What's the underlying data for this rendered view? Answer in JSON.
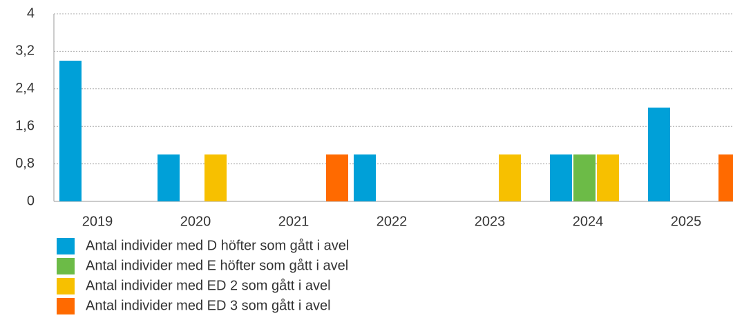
{
  "chart_data": {
    "type": "bar",
    "categories": [
      "2019",
      "2020",
      "2021",
      "2022",
      "2023",
      "2024",
      "2025"
    ],
    "series": [
      {
        "name": "Antal individer med D höfter som gått i avel",
        "color": "#00a0d8",
        "values": [
          3,
          1,
          0,
          1,
          0,
          1,
          2
        ]
      },
      {
        "name": "Antal individer med E höfter som gått i avel",
        "color": "#6cbb47",
        "values": [
          0,
          0,
          0,
          0,
          0,
          1,
          0
        ]
      },
      {
        "name": "Antal individer med ED 2 som gått i avel",
        "color": "#f7c000",
        "values": [
          0,
          1,
          0,
          0,
          1,
          1,
          0
        ]
      },
      {
        "name": "Antal individer med ED 3 som gått i avel",
        "color": "#ff6a00",
        "values": [
          0,
          0,
          1,
          0,
          0,
          0,
          1
        ]
      }
    ],
    "ylim": [
      0,
      4
    ],
    "yticks": [
      0,
      {
        "value": 0.8,
        "label": "0,8"
      },
      {
        "value": 1.6,
        "label": "1,6"
      },
      {
        "value": 2.4,
        "label": "2,4"
      },
      {
        "value": 3.2,
        "label": "3,2"
      },
      4
    ],
    "grid": true,
    "legend": "bottom"
  }
}
